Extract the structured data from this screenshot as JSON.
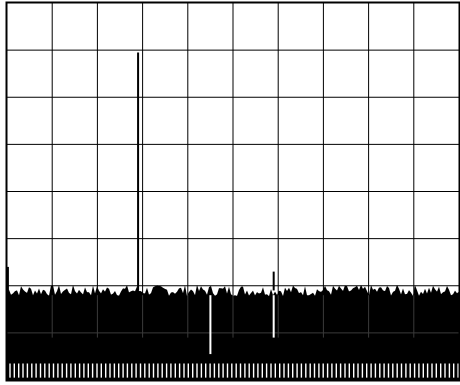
{
  "chart_data": {
    "type": "line",
    "title": "",
    "xlabel": "",
    "ylabel": "",
    "grid": true,
    "grid_divisions": {
      "x": 10,
      "y": 8
    },
    "x_range": [
      0,
      10
    ],
    "y_range": [
      0,
      8
    ],
    "noise_floor_level": 1.9,
    "noise_amplitude": 0.12,
    "series": [
      {
        "values_x": [
          0.02,
          2.9,
          5.9
        ],
        "values_y": [
          2.4,
          6.95,
          2.3
        ]
      }
    ],
    "colors": {
      "background": "#ffffff",
      "trace": "#000000",
      "grid": "#000000"
    }
  }
}
